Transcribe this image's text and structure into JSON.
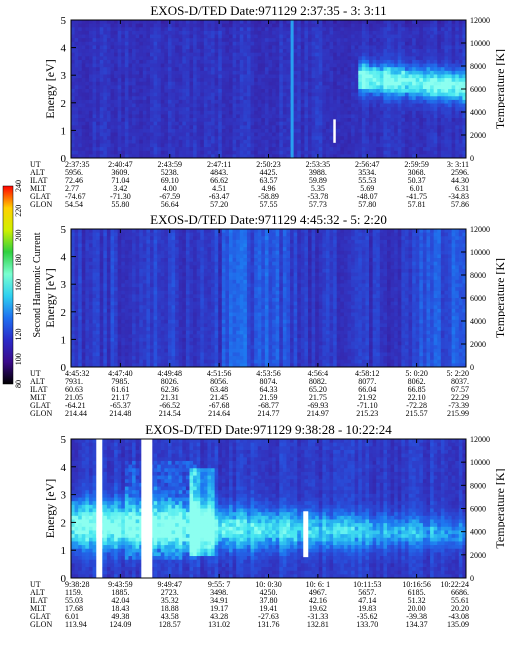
{
  "chart_data": [
    {
      "type": "heatmap",
      "title": "EXOS-D/TED   Date:971129  2:37:35 - 3: 3:11",
      "ylabel": "Energy [eV]",
      "y2label": "Temperature [K]",
      "ylim": [
        0,
        5
      ],
      "yticks": [
        "0",
        "1",
        "2",
        "3",
        "4",
        "5"
      ],
      "y2lim": [
        0,
        12000
      ],
      "y2ticks": [
        "0",
        "2000",
        "4000",
        "6000",
        "8000",
        "10000",
        "12000"
      ],
      "orbit_labels": [
        "UT",
        "ALT",
        "ILAT",
        "MLT",
        "GLAT",
        "GLON"
      ],
      "orbit_table": [
        [
          "2:37:35",
          "2:40:47",
          "2:43:59",
          "2:47:11",
          "2:50:23",
          "2:53:35",
          "2:56:47",
          "2:59:59",
          "3: 3:11"
        ],
        [
          "5956.",
          "3609.",
          "5238.",
          "4843.",
          "4425.",
          "3988.",
          "3534.",
          "3068.",
          "2596."
        ],
        [
          "72.46",
          "71.04",
          "69.10",
          "66.62",
          "63.57",
          "59.89",
          "55.53",
          "50.37",
          "44.30"
        ],
        [
          "2.77",
          "3.42",
          "4.00",
          "4.51",
          "4.96",
          "5.35",
          "5.69",
          "6.01",
          "6.31"
        ],
        [
          "-74.67",
          "-71.30",
          "-67.59",
          "-63.47",
          "-58.89",
          "-53.78",
          "-48.07",
          "-41.75",
          "-34.83"
        ],
        [
          "54.54",
          "55.80",
          "56.64",
          "57.20",
          "57.55",
          "57.73",
          "57.80",
          "57.81",
          "57.86"
        ]
      ]
    },
    {
      "type": "heatmap",
      "title": "EXOS-D/TED   Date:971129  4:45:32 - 5: 2:20",
      "ylabel": "Energy [eV]",
      "y2label": "Temperature [K]",
      "ylim": [
        0,
        5
      ],
      "yticks": [
        "0",
        "1",
        "2",
        "3",
        "4",
        "5"
      ],
      "y2lim": [
        0,
        12000
      ],
      "y2ticks": [
        "0",
        "2000",
        "4000",
        "6000",
        "8000",
        "10000",
        "12000"
      ],
      "orbit_labels": [
        "UT",
        "ALT",
        "ILAT",
        "MLT",
        "GLAT",
        "GLON"
      ],
      "orbit_table": [
        [
          "4:45:32",
          "4:47:40",
          "4:49:48",
          "4:51:56",
          "4:53:56",
          "4:56:4",
          "4:58:12",
          "5: 0:20",
          "5: 2:20"
        ],
        [
          "7931.",
          "7985.",
          "8026.",
          "8056.",
          "8074.",
          "8082.",
          "8077.",
          "8062.",
          "8037."
        ],
        [
          "60.63",
          "61.61",
          "62.36",
          "63.48",
          "64.33",
          "65.20",
          "66.04",
          "66.85",
          "67.57"
        ],
        [
          "21.05",
          "21.17",
          "21.31",
          "21.45",
          "21.59",
          "21.75",
          "21.92",
          "22.10",
          "22.29"
        ],
        [
          "-64.21",
          "-65.37",
          "-66.52",
          "-67.68",
          "-68.77",
          "-69.93",
          "-71.10",
          "-72.28",
          "-73.39"
        ],
        [
          "214.44",
          "214.48",
          "214.54",
          "214.64",
          "214.77",
          "214.97",
          "215.23",
          "215.57",
          "215.99"
        ]
      ]
    },
    {
      "type": "heatmap",
      "title": "EXOS-D/TED   Date:971129  9:38:28 - 10:22:24",
      "ylabel": "Energy [eV]",
      "y2label": "Temperature [K]",
      "ylim": [
        0,
        5
      ],
      "yticks": [
        "0",
        "1",
        "2",
        "3",
        "4",
        "5"
      ],
      "y2lim": [
        0,
        12000
      ],
      "y2ticks": [
        "0",
        "2000",
        "4000",
        "6000",
        "8000",
        "10000",
        "12000"
      ],
      "orbit_labels": [
        "UT",
        "ALT",
        "ILAT",
        "MLT",
        "GLAT",
        "GLON"
      ],
      "orbit_table": [
        [
          "9:38:28",
          "9:43:59",
          "9:49:47",
          "9:55: 7",
          "10: 0:30",
          "10: 6: 1",
          "10:11:53",
          "10:16:56",
          "10:22:24"
        ],
        [
          "1159.",
          "1885.",
          "2723.",
          "3498.",
          "4250.",
          "4967.",
          "5657.",
          "6185.",
          "6686."
        ],
        [
          "55.03",
          "42.04",
          "35.32",
          "34.91",
          "37.80",
          "42.16",
          "47.14",
          "51.32",
          "55.61"
        ],
        [
          "17.68",
          "18.43",
          "18.88",
          "19.17",
          "19.41",
          "19.62",
          "19.83",
          "20.00",
          "20.20"
        ],
        [
          "6.01",
          "49.38",
          "43.58",
          "43.28",
          "-27.63",
          "-31.33",
          "-35.62",
          "-39.38",
          "-43.08"
        ],
        [
          "113.94",
          "124.09",
          "128.57",
          "131.02",
          "131.76",
          "132.81",
          "133.70",
          "134.37",
          "135.09"
        ]
      ]
    }
  ],
  "colorbar": {
    "label": "Second Harmonic Current",
    "ticks": [
      "80",
      "100",
      "120",
      "140",
      "160",
      "180",
      "200",
      "220",
      "240"
    ],
    "stops": [
      "#000000",
      "#3a0a8a",
      "#2a2ac8",
      "#1f6ff0",
      "#2fd0f0",
      "#7affd0",
      "#2fd040",
      "#d0f000",
      "#ffd000",
      "#ff0000"
    ]
  }
}
